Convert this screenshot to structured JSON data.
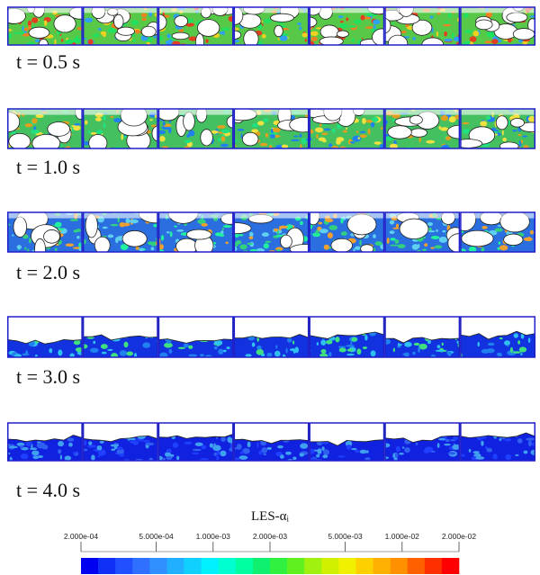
{
  "rows": [
    {
      "label": "t = 0.5 s"
    },
    {
      "label": "t = 1.0 s"
    },
    {
      "label": "t = 2.0 s"
    },
    {
      "label": "t = 3.0 s"
    },
    {
      "label": "t = 4.0 s"
    }
  ],
  "colorbar": {
    "title": "LES-αᵢ",
    "scale": "log",
    "lim": [
      0.0002,
      0.02
    ],
    "ticks": [
      {
        "value": 0.0002,
        "label": "2.000e-04"
      },
      {
        "value": 0.0005,
        "label": "5.000e-04"
      },
      {
        "value": 0.001,
        "label": "1.000e-03"
      },
      {
        "value": 0.002,
        "label": "2.000e-03"
      },
      {
        "value": 0.005,
        "label": "5.000e-03"
      },
      {
        "value": 0.01,
        "label": "1.000e-02"
      },
      {
        "value": 0.02,
        "label": "2.000e-02"
      }
    ],
    "colors": [
      "#0000f0",
      "#1030f8",
      "#2050ff",
      "#3070ff",
      "#3090ff",
      "#20b0ff",
      "#10d0ff",
      "#00f0ff",
      "#00ffd0",
      "#00ffa0",
      "#10f070",
      "#30f040",
      "#60f020",
      "#a0f010",
      "#d0f000",
      "#f0f000",
      "#ffd000",
      "#ffb000",
      "#ff9000",
      "#ff6000",
      "#ff3000",
      "#ff0000"
    ]
  }
}
